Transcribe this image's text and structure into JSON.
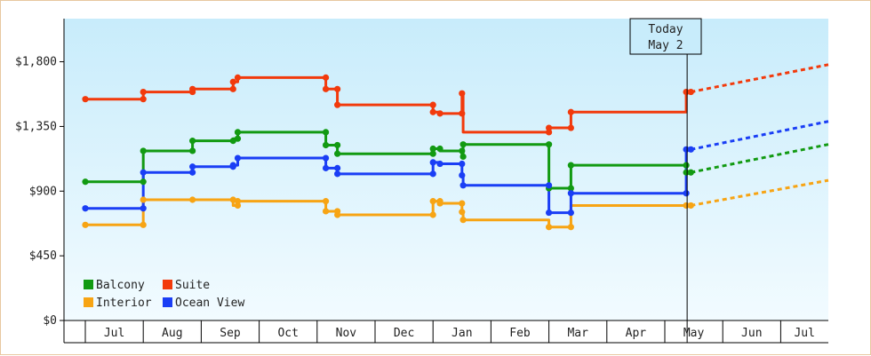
{
  "chart_data": {
    "type": "line",
    "title": "",
    "xlabel": "",
    "ylabel": "",
    "ylim": [
      0,
      2100
    ],
    "yticks": [
      0,
      450,
      900,
      1350,
      1800
    ],
    "ytick_labels": [
      "$0",
      "$450",
      "$900",
      "$1,350",
      "$1,800"
    ],
    "x_months": [
      "Jul",
      "Aug",
      "Sep",
      "Oct",
      "Nov",
      "Dec",
      "Jan",
      "Feb",
      "Mar",
      "Apr",
      "May",
      "Jun",
      "Jul"
    ],
    "today": {
      "label": "Today",
      "date": "May 2"
    },
    "legend_placement": "bottom-left",
    "grid": false,
    "series": [
      {
        "name": "Balcony",
        "color": "#129a12",
        "points": [
          [
            0,
            965
          ],
          [
            1.0,
            965
          ],
          [
            1.0,
            1180
          ],
          [
            1.85,
            1180
          ],
          [
            1.85,
            1250
          ],
          [
            2.55,
            1250
          ],
          [
            2.55,
            1265
          ],
          [
            2.63,
            1265
          ],
          [
            2.63,
            1310
          ],
          [
            4.15,
            1310
          ],
          [
            4.15,
            1220
          ],
          [
            4.35,
            1220
          ],
          [
            4.35,
            1160
          ],
          [
            6.0,
            1160
          ],
          [
            6.0,
            1195
          ],
          [
            6.12,
            1195
          ],
          [
            6.12,
            1180
          ],
          [
            6.5,
            1180
          ],
          [
            6.5,
            1140
          ],
          [
            6.52,
            1140
          ],
          [
            6.52,
            1225
          ],
          [
            8.0,
            1225
          ],
          [
            8.0,
            920
          ],
          [
            8.38,
            920
          ],
          [
            8.38,
            1080
          ],
          [
            10.37,
            1080
          ],
          [
            10.37,
            1030
          ],
          [
            10.45,
            1030
          ]
        ],
        "markers": [
          [
            0,
            965
          ],
          [
            1.0,
            965
          ],
          [
            1.0,
            1180
          ],
          [
            1.85,
            1180
          ],
          [
            1.85,
            1250
          ],
          [
            2.55,
            1250
          ],
          [
            2.63,
            1265
          ],
          [
            2.63,
            1310
          ],
          [
            4.15,
            1310
          ],
          [
            4.15,
            1220
          ],
          [
            4.35,
            1220
          ],
          [
            4.35,
            1160
          ],
          [
            6.0,
            1160
          ],
          [
            6.0,
            1195
          ],
          [
            6.12,
            1195
          ],
          [
            6.5,
            1180
          ],
          [
            6.52,
            1140
          ],
          [
            6.52,
            1225
          ],
          [
            8.0,
            1225
          ],
          [
            8.0,
            920
          ],
          [
            8.38,
            920
          ],
          [
            8.38,
            1080
          ],
          [
            10.37,
            1080
          ],
          [
            10.37,
            1030
          ],
          [
            10.45,
            1030
          ]
        ],
        "forecast_to": 1225
      },
      {
        "name": "Suite",
        "color": "#f23a0c",
        "points": [
          [
            0,
            1540
          ],
          [
            1.0,
            1540
          ],
          [
            1.0,
            1590
          ],
          [
            1.85,
            1590
          ],
          [
            1.85,
            1610
          ],
          [
            2.55,
            1610
          ],
          [
            2.55,
            1660
          ],
          [
            2.63,
            1660
          ],
          [
            2.63,
            1690
          ],
          [
            4.15,
            1690
          ],
          [
            4.15,
            1610
          ],
          [
            4.35,
            1610
          ],
          [
            4.35,
            1500
          ],
          [
            6.0,
            1500
          ],
          [
            6.0,
            1450
          ],
          [
            6.12,
            1450
          ],
          [
            6.12,
            1440
          ],
          [
            6.5,
            1440
          ],
          [
            6.5,
            1580
          ],
          [
            6.52,
            1580
          ],
          [
            6.52,
            1310
          ],
          [
            8.0,
            1310
          ],
          [
            8.0,
            1340
          ],
          [
            8.38,
            1340
          ],
          [
            8.38,
            1450
          ],
          [
            10.37,
            1450
          ],
          [
            10.37,
            1590
          ],
          [
            10.45,
            1590
          ]
        ],
        "markers": [
          [
            0,
            1540
          ],
          [
            1.0,
            1540
          ],
          [
            1.0,
            1590
          ],
          [
            1.85,
            1590
          ],
          [
            1.85,
            1610
          ],
          [
            2.55,
            1610
          ],
          [
            2.55,
            1660
          ],
          [
            2.63,
            1690
          ],
          [
            4.15,
            1690
          ],
          [
            4.15,
            1610
          ],
          [
            4.35,
            1610
          ],
          [
            4.35,
            1500
          ],
          [
            6.0,
            1500
          ],
          [
            6.0,
            1450
          ],
          [
            6.12,
            1440
          ],
          [
            6.5,
            1440
          ],
          [
            6.5,
            1580
          ],
          [
            8.0,
            1310
          ],
          [
            8.0,
            1340
          ],
          [
            8.38,
            1340
          ],
          [
            8.38,
            1450
          ],
          [
            10.37,
            1590
          ],
          [
            10.45,
            1590
          ]
        ],
        "forecast_to": 1780
      },
      {
        "name": "Interior",
        "color": "#f7a414",
        "points": [
          [
            0,
            665
          ],
          [
            1.0,
            665
          ],
          [
            1.0,
            840
          ],
          [
            1.85,
            840
          ],
          [
            2.55,
            840
          ],
          [
            2.55,
            800
          ],
          [
            2.63,
            800
          ],
          [
            2.63,
            830
          ],
          [
            4.15,
            830
          ],
          [
            4.15,
            760
          ],
          [
            4.35,
            760
          ],
          [
            4.35,
            735
          ],
          [
            6.0,
            735
          ],
          [
            6.0,
            830
          ],
          [
            6.12,
            830
          ],
          [
            6.12,
            815
          ],
          [
            6.5,
            815
          ],
          [
            6.5,
            755
          ],
          [
            6.52,
            755
          ],
          [
            6.52,
            700
          ],
          [
            8.0,
            700
          ],
          [
            8.0,
            650
          ],
          [
            8.38,
            650
          ],
          [
            8.38,
            800
          ],
          [
            10.37,
            800
          ],
          [
            10.45,
            800
          ]
        ],
        "markers": [
          [
            0,
            665
          ],
          [
            1.0,
            665
          ],
          [
            1.0,
            840
          ],
          [
            1.85,
            840
          ],
          [
            2.55,
            840
          ],
          [
            2.63,
            800
          ],
          [
            2.63,
            830
          ],
          [
            4.15,
            830
          ],
          [
            4.15,
            760
          ],
          [
            4.35,
            760
          ],
          [
            4.35,
            735
          ],
          [
            6.0,
            735
          ],
          [
            6.0,
            830
          ],
          [
            6.12,
            830
          ],
          [
            6.12,
            815
          ],
          [
            6.5,
            815
          ],
          [
            6.5,
            755
          ],
          [
            6.52,
            700
          ],
          [
            8.0,
            650
          ],
          [
            8.38,
            650
          ],
          [
            10.37,
            800
          ],
          [
            10.45,
            800
          ]
        ],
        "forecast_to": 975
      },
      {
        "name": "Ocean View",
        "color": "#1a3ef5",
        "points": [
          [
            0,
            780
          ],
          [
            1.0,
            780
          ],
          [
            1.0,
            1030
          ],
          [
            1.85,
            1030
          ],
          [
            1.85,
            1070
          ],
          [
            2.55,
            1070
          ],
          [
            2.55,
            1080
          ],
          [
            2.63,
            1080
          ],
          [
            2.63,
            1130
          ],
          [
            4.15,
            1130
          ],
          [
            4.15,
            1060
          ],
          [
            4.35,
            1060
          ],
          [
            4.35,
            1020
          ],
          [
            6.0,
            1020
          ],
          [
            6.0,
            1100
          ],
          [
            6.12,
            1100
          ],
          [
            6.12,
            1090
          ],
          [
            6.5,
            1090
          ],
          [
            6.5,
            1010
          ],
          [
            6.52,
            1010
          ],
          [
            6.52,
            940
          ],
          [
            8.0,
            940
          ],
          [
            8.0,
            750
          ],
          [
            8.38,
            750
          ],
          [
            8.38,
            885
          ],
          [
            10.37,
            885
          ],
          [
            10.37,
            1190
          ],
          [
            10.45,
            1190
          ]
        ],
        "markers": [
          [
            0,
            780
          ],
          [
            1.0,
            780
          ],
          [
            1.0,
            1030
          ],
          [
            1.85,
            1030
          ],
          [
            1.85,
            1070
          ],
          [
            2.55,
            1070
          ],
          [
            2.55,
            1080
          ],
          [
            2.63,
            1130
          ],
          [
            4.15,
            1130
          ],
          [
            4.15,
            1060
          ],
          [
            4.35,
            1060
          ],
          [
            4.35,
            1020
          ],
          [
            6.0,
            1020
          ],
          [
            6.0,
            1100
          ],
          [
            6.12,
            1090
          ],
          [
            6.5,
            1090
          ],
          [
            6.5,
            1010
          ],
          [
            6.52,
            940
          ],
          [
            8.0,
            940
          ],
          [
            8.0,
            750
          ],
          [
            8.38,
            750
          ],
          [
            8.38,
            885
          ],
          [
            10.37,
            885
          ],
          [
            10.37,
            1190
          ],
          [
            10.45,
            1190
          ]
        ],
        "forecast_to": 1385
      }
    ]
  }
}
